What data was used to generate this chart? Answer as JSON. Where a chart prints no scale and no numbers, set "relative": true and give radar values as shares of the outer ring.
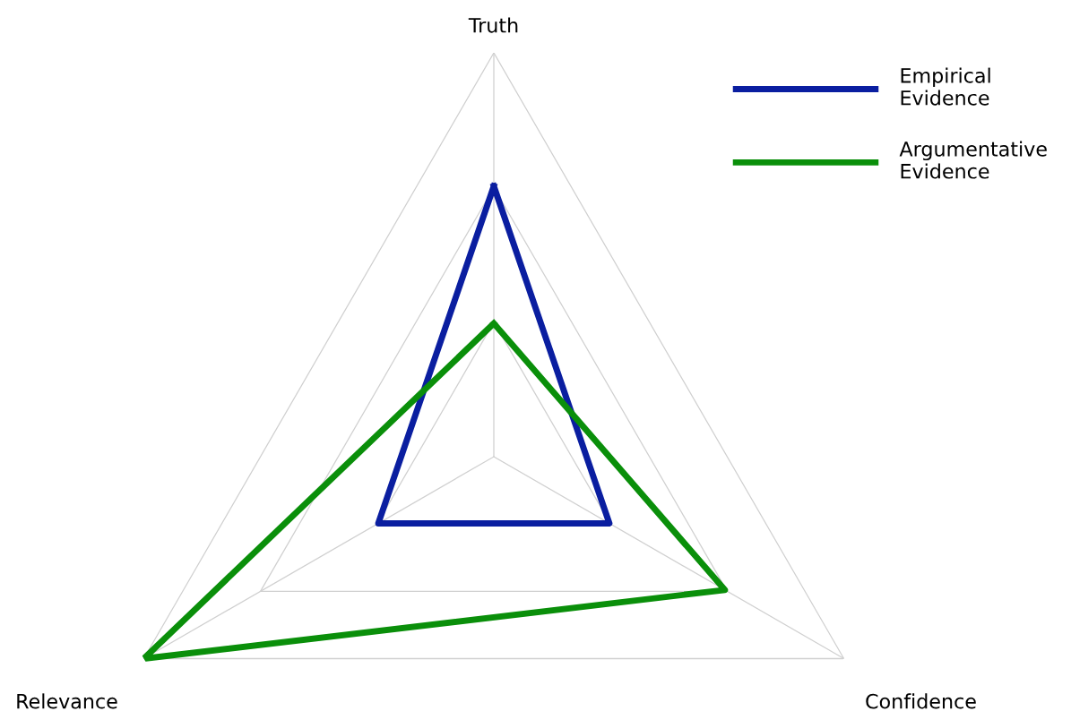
{
  "chart_data": {
    "type": "radar",
    "relative": true,
    "grid": true,
    "legend": "top right",
    "categories": [
      "Truth",
      "Confidence",
      "Relevance"
    ],
    "series": [
      {
        "name": "Empirical\nEvidence",
        "color": "#0a1ea0",
        "values": [
          0.67,
          0.33,
          0.33
        ]
      },
      {
        "name": "Argumentative\nEvidence",
        "color": "#0a8f0a",
        "values": [
          0.33,
          0.66,
          1.0
        ]
      }
    ]
  }
}
